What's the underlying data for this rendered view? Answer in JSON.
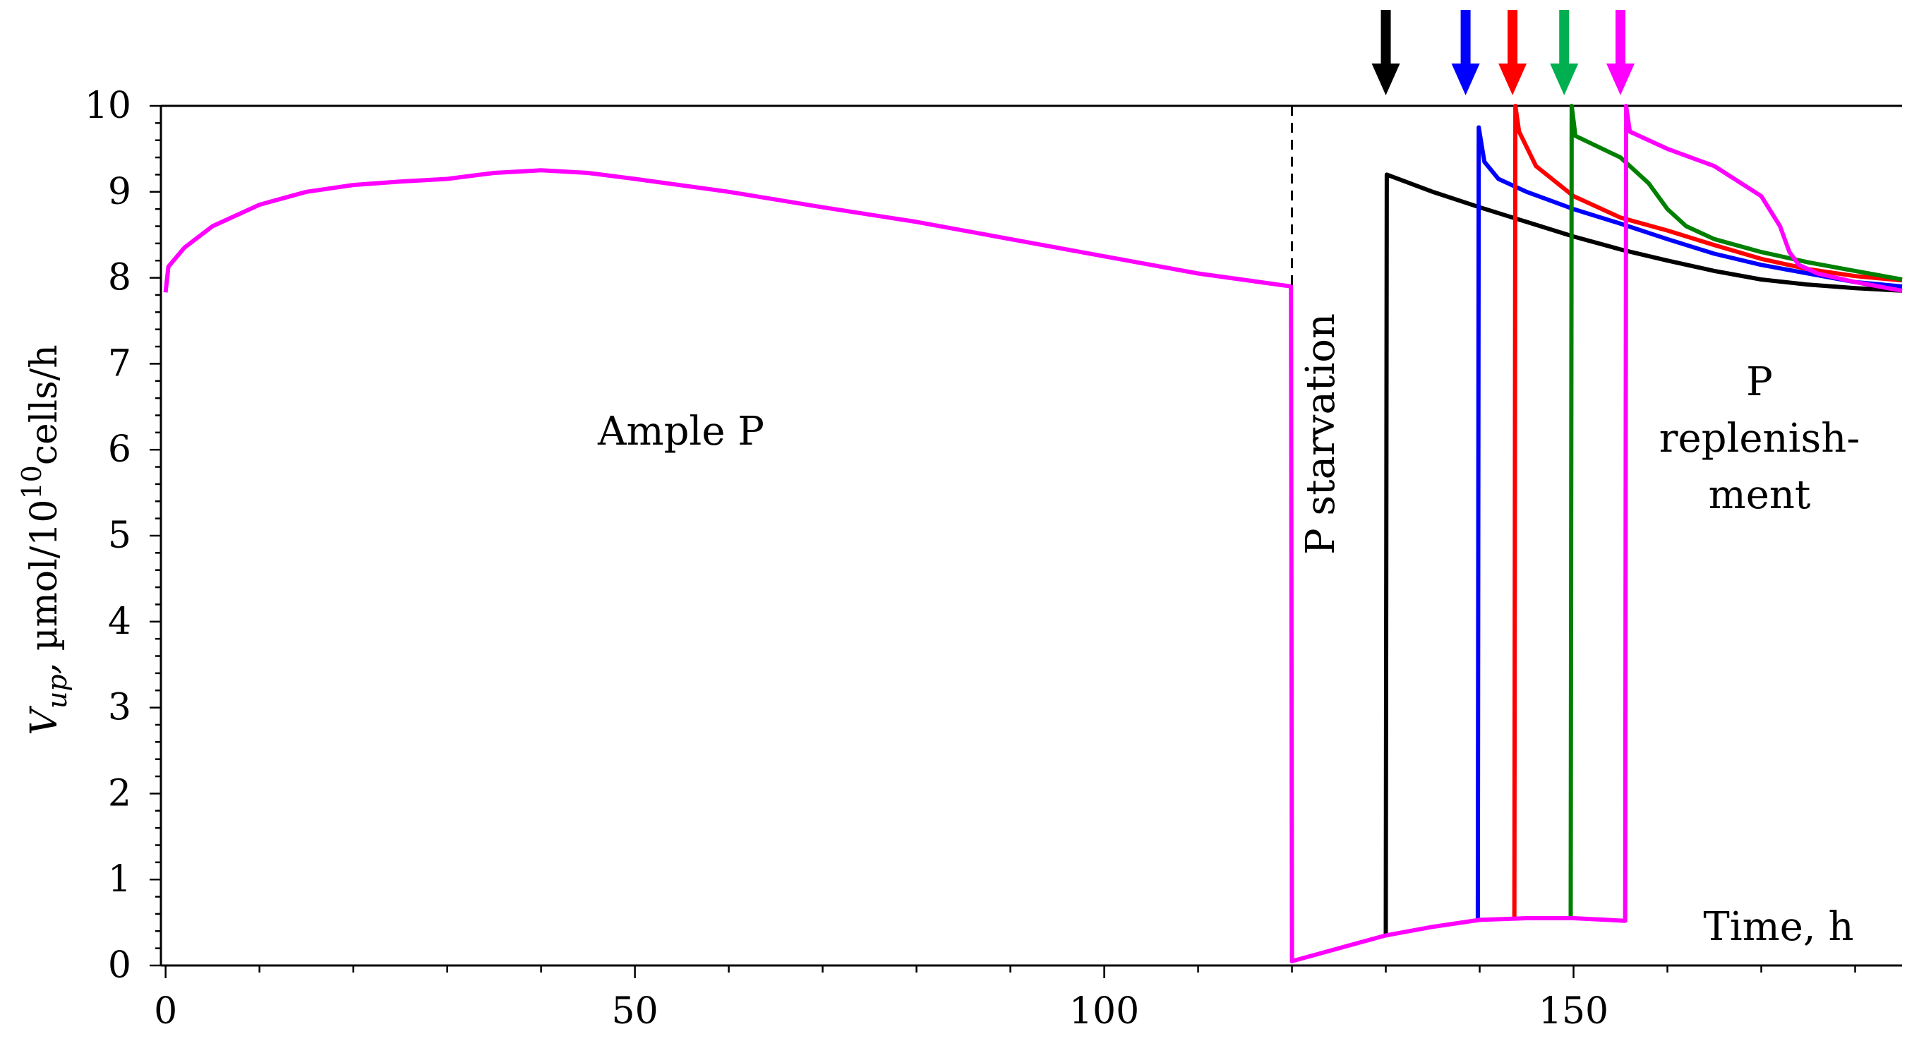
{
  "chart_data": {
    "type": "line",
    "title": "",
    "xlabel": "Time, h",
    "ylabel": {
      "var": "V",
      "sub": "up",
      "comma": ",",
      "unit_prefix": " µmol/10",
      "sup": "10",
      "unit_suffix": "cells/h"
    },
    "xlim": [
      -0.5,
      185
    ],
    "ylim": [
      0,
      10
    ],
    "x_ticks": [
      0,
      50,
      100,
      150
    ],
    "x_tick_labels": [
      "0",
      "50",
      "100",
      "150"
    ],
    "y_ticks": [
      0,
      1,
      2,
      3,
      4,
      5,
      6,
      7,
      8,
      9,
      10
    ],
    "y_tick_labels": [
      "0",
      "1",
      "2",
      "3",
      "4",
      "5",
      "6",
      "7",
      "8",
      "9",
      "10"
    ],
    "grid": false,
    "annotations": {
      "ample": "Ample P",
      "starvation": "P starvation",
      "replenish_1": "P",
      "replenish_2": "replenish-",
      "replenish_3": "ment"
    },
    "phase_boundary_x": 120,
    "series": [
      {
        "color": "#ff00ff",
        "points": [
          [
            0,
            7.83
          ],
          [
            0.3,
            8.13
          ],
          [
            2,
            8.35
          ],
          [
            5,
            8.6
          ],
          [
            10,
            8.85
          ],
          [
            15,
            9.0
          ],
          [
            20,
            9.08
          ],
          [
            25,
            9.12
          ],
          [
            30,
            9.15
          ],
          [
            35,
            9.22
          ],
          [
            40,
            9.25
          ],
          [
            45,
            9.22
          ],
          [
            50,
            9.15
          ],
          [
            60,
            9.0
          ],
          [
            70,
            8.82
          ],
          [
            80,
            8.65
          ],
          [
            90,
            8.45
          ],
          [
            100,
            8.25
          ],
          [
            110,
            8.05
          ],
          [
            119.9,
            7.9
          ],
          [
            120,
            0.05
          ],
          [
            125,
            0.2
          ],
          [
            130,
            0.35
          ],
          [
            135,
            0.45
          ],
          [
            140,
            0.53
          ],
          [
            145,
            0.55
          ],
          [
            150,
            0.55
          ],
          [
            155.5,
            0.52
          ],
          [
            155.6,
            10.0
          ],
          [
            156,
            9.7
          ],
          [
            160,
            9.5
          ],
          [
            165,
            9.3
          ],
          [
            170,
            8.95
          ],
          [
            172,
            8.6
          ],
          [
            173,
            8.3
          ],
          [
            174,
            8.15
          ],
          [
            176,
            8.05
          ],
          [
            180,
            7.95
          ],
          [
            185,
            7.85
          ]
        ]
      },
      {
        "color": "#000000",
        "points": [
          [
            130,
            0.35
          ],
          [
            130.1,
            9.2
          ],
          [
            135,
            9.0
          ],
          [
            140,
            8.82
          ],
          [
            145,
            8.65
          ],
          [
            150,
            8.48
          ],
          [
            155,
            8.33
          ],
          [
            160,
            8.2
          ],
          [
            165,
            8.08
          ],
          [
            170,
            7.98
          ],
          [
            175,
            7.92
          ],
          [
            180,
            7.88
          ],
          [
            185,
            7.85
          ]
        ]
      },
      {
        "color": "#0000ff",
        "points": [
          [
            139.8,
            0.53
          ],
          [
            139.9,
            9.75
          ],
          [
            140.5,
            9.35
          ],
          [
            142,
            9.15
          ],
          [
            145,
            9.0
          ],
          [
            150,
            8.8
          ],
          [
            155,
            8.63
          ],
          [
            160,
            8.45
          ],
          [
            165,
            8.28
          ],
          [
            170,
            8.15
          ],
          [
            175,
            8.05
          ],
          [
            180,
            7.95
          ],
          [
            185,
            7.9
          ]
        ]
      },
      {
        "color": "#ff0000",
        "points": [
          [
            143.7,
            0.55
          ],
          [
            143.8,
            10.0
          ],
          [
            144.2,
            9.7
          ],
          [
            146,
            9.3
          ],
          [
            150,
            8.95
          ],
          [
            155,
            8.7
          ],
          [
            160,
            8.55
          ],
          [
            165,
            8.38
          ],
          [
            170,
            8.22
          ],
          [
            175,
            8.1
          ],
          [
            180,
            8.02
          ],
          [
            185,
            7.97
          ]
        ]
      },
      {
        "color": "#008000",
        "points": [
          [
            149.7,
            0.55
          ],
          [
            149.8,
            10.0
          ],
          [
            150.2,
            9.65
          ],
          [
            155,
            9.4
          ],
          [
            158,
            9.1
          ],
          [
            160,
            8.8
          ],
          [
            162,
            8.6
          ],
          [
            165,
            8.45
          ],
          [
            170,
            8.3
          ],
          [
            175,
            8.18
          ],
          [
            180,
            8.08
          ],
          [
            185,
            7.98
          ]
        ]
      }
    ],
    "arrows": [
      {
        "x": 130,
        "color": "#000000"
      },
      {
        "x": 138.5,
        "color": "#0000ff"
      },
      {
        "x": 143.5,
        "color": "#ff0000"
      },
      {
        "x": 149,
        "color": "#00b050"
      },
      {
        "x": 155,
        "color": "#ff00ff"
      }
    ]
  }
}
